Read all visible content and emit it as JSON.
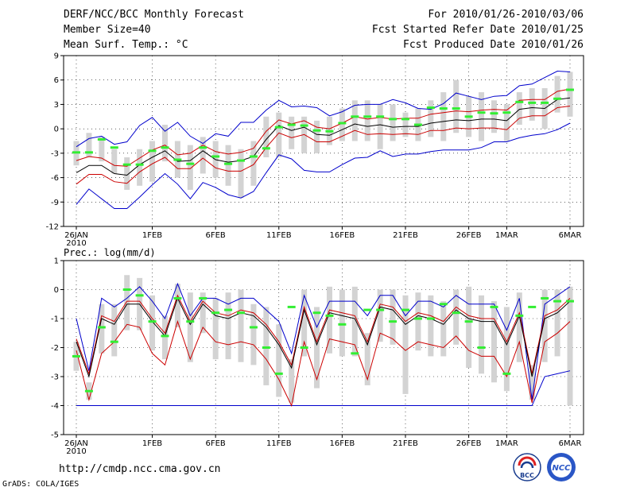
{
  "header": {
    "title": "DERF/NCC/BCC Monthly Forecast",
    "member": "Member Size=40",
    "variable": "Mean Surf. Temp.: °C",
    "period": "For 2010/01/26-2010/03/06",
    "started": "Fcst Started Refer Date 2010/01/25",
    "produced": "Fcst Produced Date 2010/01/26"
  },
  "footer": {
    "url": "http://cmdp.ncc.cma.gov.cn",
    "credit": "GrADS: COLA/IGES",
    "logo_bcc": "BCC",
    "logo_ncc": "NCC"
  },
  "colors": {
    "envelope": "#0000cc",
    "spread": "#cc0000",
    "mean": "#000000",
    "obs": "#33ee33",
    "box": "#d3d3d3"
  },
  "chart_data": [
    {
      "type": "line",
      "title": "Mean Surf. Temp.: °C",
      "ylim": [
        -12,
        9
      ],
      "yticks": [
        9,
        6,
        3,
        0,
        -3,
        -6,
        -9,
        -12
      ],
      "xtick_labels": [
        {
          "day": 0,
          "label": "26JAN"
        },
        {
          "day": 6,
          "label": "1FEB"
        },
        {
          "day": 11,
          "label": "6FEB"
        },
        {
          "day": 16,
          "label": "11FEB"
        },
        {
          "day": 21,
          "label": "16FEB"
        },
        {
          "day": 26,
          "label": "21FEB"
        },
        {
          "day": 31,
          "label": "26FEB"
        },
        {
          "day": 34,
          "label": "1MAR"
        },
        {
          "day": 39,
          "label": "6MAR"
        }
      ],
      "year_label": "2010",
      "series": [
        {
          "name": "max",
          "values": [
            -9.3,
            -7.4,
            -8.6,
            -9.8,
            -9.8,
            -8.4,
            -6.9,
            -5.5,
            -6.8,
            -8.6,
            -6.6,
            -7.2,
            -8.1,
            -8.5,
            -7.7,
            -5.4,
            -3.2,
            -3.7,
            -5.1,
            -5.3,
            -5.3,
            -4.4,
            -3.6,
            -3.5,
            -2.7,
            -3.4,
            -3.1,
            -3.1,
            -2.8,
            -2.6,
            -2.6,
            -2.6,
            -2.3,
            -1.6,
            -1.6,
            -1.1,
            -0.8,
            -0.6,
            -0.1,
            0.7
          ]
        },
        {
          "name": "min_pad",
          "values": [
            -2.2,
            -1.2,
            -0.9,
            -1.9,
            -1.6,
            0.4,
            1.4,
            -0.3,
            0.8,
            -0.9,
            -1.8,
            -0.6,
            -0.9,
            0.8,
            0.8,
            2.3,
            3.5,
            2.7,
            2.8,
            2.6,
            1.6,
            2.1,
            2.9,
            3.0,
            3.0,
            3.6,
            3.2,
            2.5,
            2.4,
            3.1,
            4.4,
            4.0,
            3.6,
            4.0,
            4.1,
            5.3,
            5.5,
            6.3,
            7.1,
            7.0
          ]
        },
        {
          "name": "mean",
          "values": [
            -5.4,
            -4.5,
            -4.5,
            -5.5,
            -5.7,
            -4.4,
            -3.5,
            -2.7,
            -4.0,
            -3.9,
            -2.7,
            -3.8,
            -4.1,
            -3.9,
            -3.4,
            -1.3,
            0.4,
            -0.2,
            0.2,
            -0.7,
            -0.8,
            -0.1,
            0.6,
            0.3,
            0.5,
            0.2,
            0.3,
            0.3,
            0.7,
            0.9,
            1.1,
            1.0,
            1.2,
            1.2,
            1.0,
            2.4,
            2.6,
            2.5,
            3.6,
            3.8
          ]
        },
        {
          "name": "upper",
          "values": [
            -3.9,
            -3.4,
            -3.6,
            -4.5,
            -4.6,
            -3.6,
            -2.6,
            -2.0,
            -3.2,
            -3.0,
            -2.0,
            -2.8,
            -3.1,
            -2.9,
            -2.4,
            -0.3,
            1.1,
            0.6,
            1.0,
            0.2,
            0.0,
            0.7,
            1.5,
            1.2,
            1.4,
            1.2,
            1.3,
            1.3,
            1.8,
            2.0,
            2.2,
            2.1,
            2.3,
            2.4,
            2.3,
            3.5,
            3.6,
            3.6,
            4.6,
            4.9
          ]
        },
        {
          "name": "lower",
          "values": [
            -6.8,
            -5.6,
            -5.6,
            -6.5,
            -6.7,
            -5.3,
            -4.3,
            -3.5,
            -4.9,
            -4.9,
            -3.6,
            -4.8,
            -5.2,
            -5.2,
            -4.4,
            -2.3,
            -0.5,
            -1.1,
            -0.7,
            -1.6,
            -1.6,
            -0.9,
            -0.2,
            -0.7,
            -0.6,
            -0.7,
            -0.6,
            -0.7,
            -0.2,
            -0.2,
            0.1,
            0.0,
            0.1,
            0.1,
            -0.1,
            1.3,
            1.6,
            1.6,
            2.6,
            2.8
          ]
        },
        {
          "name": "obs",
          "values": [
            -2.9,
            -2.9,
            -1.3,
            -2.3,
            -4.4,
            -4.4,
            -2.7,
            -2.3,
            -3.8,
            -4.3,
            -2.3,
            -3.4,
            -4.3,
            -3.9,
            -3.4,
            -2.4,
            0.2,
            0.5,
            0.4,
            -0.2,
            -0.3,
            0.7,
            1.5,
            1.5,
            1.5,
            1.2,
            1.2,
            0.5,
            2.6,
            2.5,
            2.5,
            1.5,
            2.0,
            1.9,
            2.0,
            3.3,
            3.2,
            3.2,
            3.7,
            4.8
          ]
        },
        {
          "name": "box_low",
          "values": [
            -4.5,
            -3.5,
            -4.0,
            -5.5,
            -7.5,
            -7.0,
            -6.5,
            -4.0,
            -6.0,
            -7.5,
            -5.5,
            -6.0,
            -7.0,
            -8.5,
            -7.0,
            -3.5,
            -3.5,
            -2.5,
            -3.0,
            -3.0,
            -2.0,
            -1.5,
            -1.5,
            -1.5,
            -2.5,
            -1.5,
            -1.0,
            -1.5,
            -1.0,
            -1.5,
            -0.5,
            -1.0,
            -1.5,
            -0.5,
            -1.5,
            0.5,
            1.0,
            0.0,
            2.0,
            1.5
          ]
        },
        {
          "name": "box_high",
          "values": [
            -1.5,
            -0.5,
            -1.0,
            -2.5,
            -3.5,
            -2.5,
            -1.5,
            0.5,
            -1.5,
            -2.0,
            -1.0,
            -1.5,
            -2.0,
            -2.5,
            -1.5,
            1.5,
            2.0,
            1.5,
            1.5,
            1.0,
            1.5,
            2.5,
            3.5,
            3.5,
            3.0,
            3.0,
            2.0,
            2.5,
            3.5,
            4.5,
            6.0,
            4.0,
            4.5,
            3.5,
            3.0,
            4.5,
            5.0,
            5.0,
            6.5,
            7.0
          ]
        }
      ]
    },
    {
      "type": "line",
      "title": "Prec.: log(mm/d)",
      "ylim": [
        -5,
        1
      ],
      "yticks": [
        1,
        0,
        -1,
        -2,
        -3,
        -4,
        -5
      ],
      "xtick_labels": [
        {
          "day": 0,
          "label": "26JAN"
        },
        {
          "day": 6,
          "label": "1FEB"
        },
        {
          "day": 11,
          "label": "6FEB"
        },
        {
          "day": 16,
          "label": "11FEB"
        },
        {
          "day": 21,
          "label": "16FEB"
        },
        {
          "day": 26,
          "label": "21FEB"
        },
        {
          "day": 31,
          "label": "26FEB"
        },
        {
          "day": 34,
          "label": "1MAR"
        },
        {
          "day": 39,
          "label": "6MAR"
        }
      ],
      "year_label": "2010",
      "series": [
        {
          "name": "max",
          "values": [
            -1.0,
            -2.8,
            -0.3,
            -0.6,
            -0.3,
            0.1,
            -0.4,
            -1.0,
            0.2,
            -0.9,
            -0.3,
            -0.3,
            -0.5,
            -0.3,
            -0.3,
            -0.7,
            -1.1,
            -2.2,
            -0.2,
            -1.3,
            -0.4,
            -0.4,
            -0.4,
            -0.9,
            -0.2,
            -0.2,
            -0.9,
            -0.4,
            -0.4,
            -0.6,
            -0.2,
            -0.5,
            -0.5,
            -0.5,
            -1.4,
            -0.3,
            -3.8,
            -0.5,
            -0.2,
            0.1
          ]
        },
        {
          "name": "min_pad",
          "values": [
            -4.0,
            -4.0,
            -4.0,
            -4.0,
            -4.0,
            -4.0,
            -4.0,
            -4.0,
            -4.0,
            -4.0,
            -4.0,
            -4.0,
            -4.0,
            -4.0,
            -4.0,
            -4.0,
            -4.0,
            -4.0,
            -4.0,
            -4.0,
            -4.0,
            -4.0,
            -4.0,
            -4.0,
            -4.0,
            -4.0,
            -4.0,
            -4.0,
            -4.0,
            -4.0,
            -4.0,
            -4.0,
            -4.0,
            -4.0,
            -4.0,
            -4.0,
            -4.0,
            -3.0,
            -2.9,
            -2.8
          ]
        },
        {
          "name": "mean",
          "values": [
            -1.8,
            -3.0,
            -1.0,
            -1.2,
            -0.5,
            -0.5,
            -1.1,
            -1.6,
            -0.3,
            -1.2,
            -0.5,
            -0.9,
            -1.0,
            -0.8,
            -0.9,
            -1.3,
            -1.9,
            -2.7,
            -0.7,
            -1.9,
            -0.8,
            -0.9,
            -1.0,
            -1.9,
            -0.6,
            -0.7,
            -1.2,
            -0.9,
            -1.0,
            -1.2,
            -0.7,
            -1.0,
            -1.1,
            -1.1,
            -1.9,
            -0.9,
            -3.0,
            -1.0,
            -0.8,
            -0.4
          ]
        },
        {
          "name": "upper",
          "values": [
            -1.7,
            -2.9,
            -0.9,
            -1.1,
            -0.4,
            -0.4,
            -1.0,
            -1.5,
            -0.2,
            -1.1,
            -0.4,
            -0.8,
            -0.9,
            -0.7,
            -0.8,
            -1.2,
            -1.8,
            -2.6,
            -0.6,
            -1.8,
            -0.7,
            -0.8,
            -0.9,
            -1.8,
            -0.5,
            -0.6,
            -1.1,
            -0.8,
            -0.9,
            -1.1,
            -0.6,
            -0.9,
            -1.0,
            -1.0,
            -1.8,
            -0.8,
            -2.9,
            -0.9,
            -0.7,
            -0.3
          ]
        },
        {
          "name": "lower",
          "values": [
            -2.1,
            -3.8,
            -2.2,
            -1.8,
            -1.2,
            -1.3,
            -2.2,
            -2.6,
            -1.1,
            -2.4,
            -1.3,
            -1.8,
            -1.9,
            -1.8,
            -1.9,
            -2.4,
            -3.1,
            -4.0,
            -1.8,
            -3.1,
            -1.7,
            -1.8,
            -1.9,
            -3.1,
            -1.5,
            -1.7,
            -2.1,
            -1.8,
            -1.9,
            -2.0,
            -1.6,
            -2.1,
            -2.3,
            -2.3,
            -3.0,
            -1.8,
            -3.9,
            -1.8,
            -1.5,
            -1.1
          ]
        },
        {
          "name": "obs",
          "values": [
            -2.3,
            -3.5,
            -1.3,
            -1.8,
            0.0,
            -0.2,
            -1.1,
            -1.6,
            -0.3,
            -1.1,
            -0.3,
            -0.8,
            -0.7,
            -0.8,
            -1.3,
            -2.0,
            -2.9,
            -0.6,
            -2.0,
            -0.8,
            -0.9,
            -1.2,
            -2.2,
            -0.7,
            -0.7,
            -1.1,
            -0.7,
            -1.0,
            -1.0,
            -0.5,
            -0.8,
            -1.1,
            -2.0,
            -0.6,
            -2.9,
            -0.9,
            -0.6,
            -0.3,
            -0.4,
            -0.4
          ]
        },
        {
          "name": "box_low",
          "values": [
            -2.8,
            -3.8,
            -2.2,
            -2.3,
            -1.4,
            -1.4,
            -2.1,
            -2.4,
            -1.3,
            -2.5,
            -1.5,
            -2.4,
            -2.4,
            -2.5,
            -2.6,
            -3.3,
            -3.7,
            -3.9,
            -2.3,
            -3.4,
            -2.2,
            -2.3,
            -2.3,
            -3.3,
            -1.8,
            -1.9,
            -3.6,
            -2.1,
            -2.3,
            -2.3,
            -1.9,
            -2.7,
            -2.9,
            -3.2,
            -3.5,
            -2.5,
            -3.8,
            -2.5,
            -2.3,
            -4.0
          ]
        },
        {
          "name": "box_high",
          "values": [
            -1.8,
            -3.2,
            -0.5,
            -0.5,
            0.5,
            0.4,
            -0.2,
            -0.9,
            0.2,
            -0.1,
            -0.1,
            -0.3,
            -0.1,
            0.0,
            -0.5,
            -0.6,
            -1.2,
            -2.4,
            0.0,
            -0.6,
            0.1,
            0.0,
            0.1,
            -1.5,
            0.0,
            0.0,
            -0.2,
            -0.1,
            -0.2,
            -0.4,
            0.0,
            0.1,
            -0.2,
            -0.4,
            -0.6,
            -0.1,
            -2.6,
            0.0,
            0.0,
            0.1
          ]
        }
      ]
    }
  ]
}
